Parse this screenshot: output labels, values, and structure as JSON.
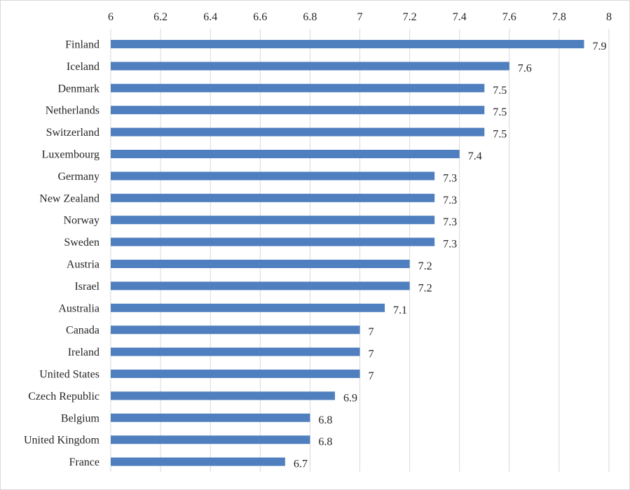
{
  "chart_data": {
    "type": "bar",
    "orientation": "horizontal",
    "title": "",
    "xlabel": "",
    "ylabel": "",
    "xlim": [
      6,
      8
    ],
    "x_ticks": [
      "6",
      "6.2",
      "6.4",
      "6.6",
      "6.8",
      "7",
      "7.2",
      "7.4",
      "7.6",
      "7.8",
      "8"
    ],
    "x_axis_position": "top",
    "grid": true,
    "legend": "none",
    "categories": [
      "Finland",
      "Iceland",
      "Denmark",
      "Netherlands",
      "Switzerland",
      "Luxembourg",
      "Germany",
      "New Zealand",
      "Norway",
      "Sweden",
      "Austria",
      "Israel",
      "Australia",
      "Canada",
      "Ireland",
      "United States",
      "Czech Republic",
      "Belgium",
      "United Kingdom",
      "France"
    ],
    "values": [
      7.9,
      7.6,
      7.5,
      7.5,
      7.5,
      7.4,
      7.3,
      7.3,
      7.3,
      7.3,
      7.2,
      7.2,
      7.1,
      7,
      7,
      7,
      6.9,
      6.8,
      6.8,
      6.7
    ],
    "data_labels": [
      "7.9",
      "7.6",
      "7.5",
      "7.5",
      "7.5",
      "7.4",
      "7.3",
      "7.3",
      "7.3",
      "7.3",
      "7.2",
      "7.2",
      "7.1",
      "7",
      "7",
      "7",
      "6.9",
      "6.8",
      "6.8",
      "6.7"
    ],
    "colors": {
      "bar": "#4f7fbe",
      "grid": "#d9d9d9",
      "text": "#262626",
      "border": "#d9d9d9"
    }
  }
}
